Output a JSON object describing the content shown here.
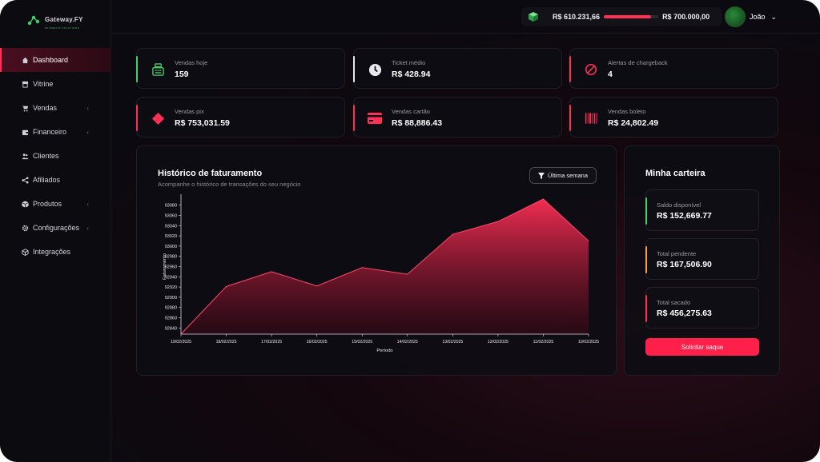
{
  "brand": {
    "name": "Gateway.FY",
    "tagline": "PAYMENTS SOLUTIONS"
  },
  "colors": {
    "accent": "#ff2f55",
    "green": "#3fd16b",
    "orange": "#f2a33a",
    "background": "#0b0a10"
  },
  "sidebar": {
    "items": [
      {
        "label": "Dashboard",
        "icon": "home-icon",
        "active": true,
        "expandable": false
      },
      {
        "label": "Vitrine",
        "icon": "store-icon",
        "active": false,
        "expandable": false
      },
      {
        "label": "Vendas",
        "icon": "cart-icon",
        "active": false,
        "expandable": true
      },
      {
        "label": "Financeiro",
        "icon": "wallet-icon",
        "active": false,
        "expandable": true
      },
      {
        "label": "Clientes",
        "icon": "users-icon",
        "active": false,
        "expandable": false
      },
      {
        "label": "Afiliados",
        "icon": "share-icon",
        "active": false,
        "expandable": false
      },
      {
        "label": "Produtos",
        "icon": "box-icon",
        "active": false,
        "expandable": true
      },
      {
        "label": "Configurações",
        "icon": "gear-icon",
        "active": false,
        "expandable": true
      },
      {
        "label": "Integrações",
        "icon": "cube-icon",
        "active": false,
        "expandable": false
      }
    ]
  },
  "header": {
    "balance_current": "R$ 610.231,66",
    "balance_goal": "R$ 700.000,00",
    "balance_progress": 0.87,
    "user_name": "João"
  },
  "stats": [
    {
      "label": "Vendas hoje",
      "value": "159",
      "icon": "cash-register-icon",
      "color": "#3fd16b"
    },
    {
      "label": "Ticket médio",
      "value": "R$ 428.94",
      "icon": "clock-icon",
      "color": "#e8e8ee"
    },
    {
      "label": "Alertas de chargeback",
      "value": "4",
      "icon": "ban-icon",
      "color": "#ff2f55"
    },
    {
      "label": "Vendas pix",
      "value": "R$ 753,031.59",
      "icon": "pix-icon",
      "color": "#ff2f55"
    },
    {
      "label": "Vendas cartão",
      "value": "R$ 88,886.43",
      "icon": "credit-card-icon",
      "color": "#ff2f55"
    },
    {
      "label": "Vendas boleto",
      "value": "R$ 24,802.49",
      "icon": "barcode-icon",
      "color": "#ff2f55"
    }
  ],
  "chart": {
    "title": "Histórico de faturamento",
    "subtitle": "Acompanhe o histórico de transações do seu negócio",
    "filter_label": "Última semana"
  },
  "chart_data": {
    "type": "area",
    "x": [
      "19/02/2025",
      "18/02/2025",
      "17/02/2025",
      "16/02/2025",
      "15/02/2025",
      "14/02/2025",
      "13/02/2025",
      "12/02/2025",
      "11/02/2025",
      "10/02/2025"
    ],
    "values": [
      92828,
      92921,
      92950,
      92922,
      92958,
      92945,
      93023,
      93048,
      93092,
      93010
    ],
    "xlabel": "Período",
    "ylabel": "Faturamento",
    "yticks": [
      92840,
      92860,
      92880,
      92900,
      92920,
      92940,
      92960,
      92980,
      93000,
      93020,
      93040,
      93060,
      93080
    ],
    "ylim": [
      92828,
      93092
    ],
    "grid": false,
    "color": "#ff2f55"
  },
  "wallet": {
    "title": "Minha carteira",
    "items": [
      {
        "label": "Saldo disponível",
        "value": "R$ 152,669.77",
        "color": "#3fd16b"
      },
      {
        "label": "Total pendente",
        "value": "R$ 167,506.90",
        "color": "#f2a33a"
      },
      {
        "label": "Total sacado",
        "value": "R$ 456,275.63",
        "color": "#ff2f55"
      }
    ],
    "button_label": "Solicitar saque"
  }
}
